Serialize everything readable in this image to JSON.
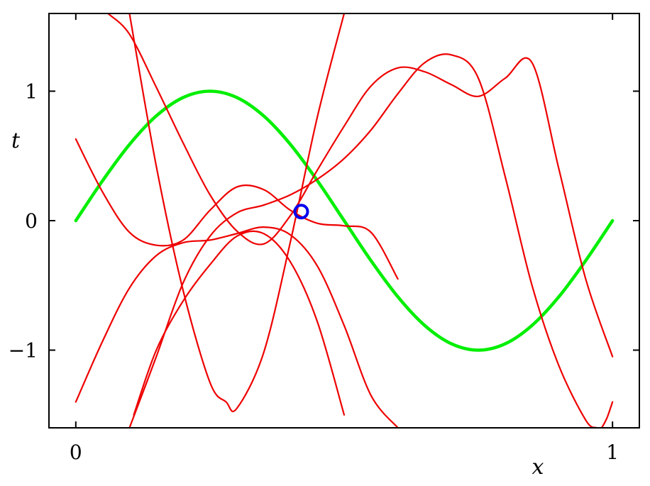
{
  "chart_data": {
    "type": "line",
    "title": "",
    "xlabel": "x",
    "ylabel": "t",
    "xlim": [
      -0.05,
      1.05
    ],
    "ylim": [
      -1.6,
      1.6
    ],
    "grid": false,
    "x_ticks": [
      {
        "value": 0,
        "label": "0"
      },
      {
        "value": 1,
        "label": "1"
      }
    ],
    "y_ticks": [
      {
        "value": 1,
        "label": "1"
      },
      {
        "value": 0,
        "label": "0"
      },
      {
        "value": -1,
        "label": "−1"
      }
    ],
    "series": [
      {
        "role": "true-function",
        "color": "#00ee00",
        "x": [
          0,
          0.05,
          0.1,
          0.15,
          0.2,
          0.25,
          0.3,
          0.35,
          0.4,
          0.45,
          0.5,
          0.55,
          0.6,
          0.65,
          0.7,
          0.75,
          0.8,
          0.85,
          0.9,
          0.95,
          1.0
        ],
        "y": [
          0,
          0.309,
          0.588,
          0.809,
          0.951,
          1.0,
          0.951,
          0.809,
          0.588,
          0.309,
          0,
          -0.309,
          -0.588,
          -0.809,
          -0.951,
          -1.0,
          -0.951,
          -0.809,
          -0.588,
          -0.309,
          0
        ]
      },
      {
        "role": "sample-curve",
        "color": "#ee0000",
        "x": [
          0.0,
          0.05,
          0.1,
          0.15,
          0.2,
          0.25,
          0.3,
          0.35,
          0.4,
          0.45,
          0.5,
          0.55,
          0.6
        ],
        "y": [
          0.63,
          0.22,
          -0.09,
          -0.19,
          -0.15,
          0.08,
          0.26,
          0.24,
          0.08,
          -0.02,
          -0.04,
          -0.09,
          -0.45
        ]
      },
      {
        "role": "sample-curve",
        "color": "#ee0000",
        "x": [
          0.0,
          0.05,
          0.1,
          0.15,
          0.2,
          0.25,
          0.3,
          0.35,
          0.4,
          0.45,
          0.5,
          0.55,
          0.6
        ],
        "y": [
          -1.4,
          -0.93,
          -0.52,
          -0.27,
          -0.17,
          -0.15,
          -0.1,
          -0.05,
          -0.11,
          -0.35,
          -0.81,
          -1.35,
          -1.6
        ]
      },
      {
        "role": "sample-curve",
        "color": "#ee0000",
        "x": [
          0.06,
          0.1,
          0.15,
          0.2,
          0.25,
          0.3,
          0.35,
          0.4,
          0.45,
          0.5,
          0.55,
          0.6,
          0.65,
          0.7,
          0.75,
          0.8,
          0.85,
          0.9,
          0.95,
          1.0
        ],
        "y": [
          1.6,
          1.44,
          1.03,
          0.6,
          0.2,
          -0.08,
          -0.18,
          0.04,
          0.39,
          0.73,
          1.04,
          1.18,
          1.15,
          1.05,
          0.96,
          1.1,
          1.22,
          0.4,
          -0.45,
          -1.05
        ]
      },
      {
        "role": "sample-curve",
        "color": "#ee0000",
        "x": [
          0.1,
          0.15,
          0.2,
          0.25,
          0.3,
          0.35,
          0.4,
          0.45,
          0.5,
          0.55,
          0.6,
          0.65,
          0.7,
          0.75,
          0.8,
          0.85,
          0.9,
          0.95,
          0.97
        ],
        "y": [
          -1.6,
          -1.05,
          -0.48,
          -0.12,
          0.06,
          0.12,
          0.2,
          0.32,
          0.48,
          0.7,
          0.98,
          1.22,
          1.28,
          1.1,
          0.34,
          -0.5,
          -1.12,
          -1.54,
          -1.6
        ]
      },
      {
        "role": "sample-curve",
        "color": "#ee0000",
        "x": [
          0.1,
          0.15,
          0.2,
          0.25,
          0.28,
          0.3,
          0.35,
          0.4,
          0.45,
          0.5
        ],
        "y": [
          1.6,
          0.42,
          -0.54,
          -1.25,
          -1.4,
          -1.45,
          -1.02,
          -0.16,
          0.8,
          1.6
        ]
      },
      {
        "role": "sample-curve",
        "color": "#ee0000",
        "x": [
          0.108,
          0.15,
          0.2,
          0.25,
          0.3,
          0.35,
          0.4,
          0.45,
          0.5
        ],
        "y": [
          -1.5,
          -1.0,
          -0.62,
          -0.34,
          -0.12,
          -0.1,
          -0.32,
          -0.78,
          -1.5
        ]
      },
      {
        "role": "sample-curve",
        "color": "#ee0000",
        "x": [
          0.98,
          0.99,
          1.0
        ],
        "y": [
          -1.6,
          -1.52,
          -1.4
        ]
      }
    ],
    "points": [
      {
        "x": 0.42,
        "y": 0.07,
        "color": "#0000ee",
        "marker": "open-circle"
      }
    ]
  }
}
